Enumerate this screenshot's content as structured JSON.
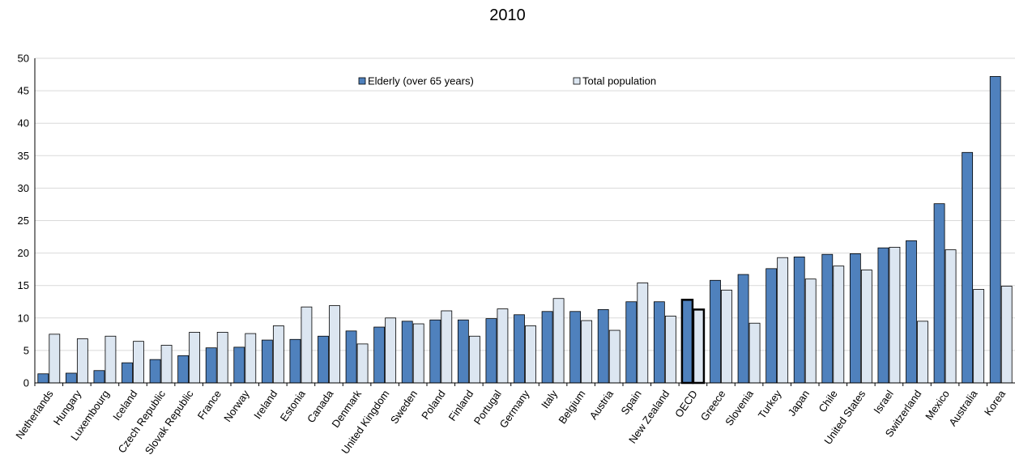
{
  "chart_data": {
    "type": "bar",
    "title": "2010",
    "xlabel": "",
    "ylabel": "",
    "ylim": [
      0,
      50
    ],
    "yticks": [
      0,
      5,
      10,
      15,
      20,
      25,
      30,
      35,
      40,
      45,
      50
    ],
    "grid": true,
    "legend_position": "top-center",
    "highlight_category": "OECD",
    "categories": [
      "Netherlands",
      "Hungary",
      "Luxembourg",
      "Iceland",
      "Czech Republic",
      "Slovak Republic",
      "France",
      "Norway",
      "Ireland",
      "Estonia",
      "Canada",
      "Denmark",
      "United Kingdom",
      "Sweden",
      "Poland",
      "Finland",
      "Portugal",
      "Germany",
      "Italy",
      "Belgium",
      "Austria",
      "Spain",
      "New Zealand",
      "OECD",
      "Greece",
      "Slovenia",
      "Turkey",
      "Japan",
      "Chile",
      "United States",
      "Israel",
      "Switzerland",
      "Mexico",
      "Australia",
      "Korea"
    ],
    "series": [
      {
        "name": "Elderly (over 65 years)",
        "color": "#4f81bd",
        "values": [
          1.4,
          1.5,
          1.9,
          3.1,
          3.6,
          4.2,
          5.4,
          5.5,
          6.6,
          6.7,
          7.2,
          8.0,
          8.6,
          9.5,
          9.7,
          9.7,
          9.9,
          10.5,
          11.0,
          11.0,
          11.3,
          12.5,
          12.5,
          12.8,
          15.8,
          16.7,
          17.6,
          19.4,
          19.8,
          19.9,
          20.8,
          21.9,
          27.6,
          35.5,
          47.2
        ]
      },
      {
        "name": "Total population",
        "color": "#dce6f1",
        "values": [
          7.5,
          6.8,
          7.2,
          6.4,
          5.8,
          7.8,
          7.8,
          7.6,
          8.8,
          11.7,
          11.9,
          6.0,
          10.0,
          9.1,
          11.1,
          7.2,
          11.4,
          8.8,
          13.0,
          9.6,
          8.1,
          15.4,
          10.3,
          11.3,
          14.3,
          9.2,
          19.3,
          16.0,
          18.0,
          17.4,
          20.9,
          9.5,
          20.5,
          14.4,
          14.9
        ]
      }
    ]
  }
}
